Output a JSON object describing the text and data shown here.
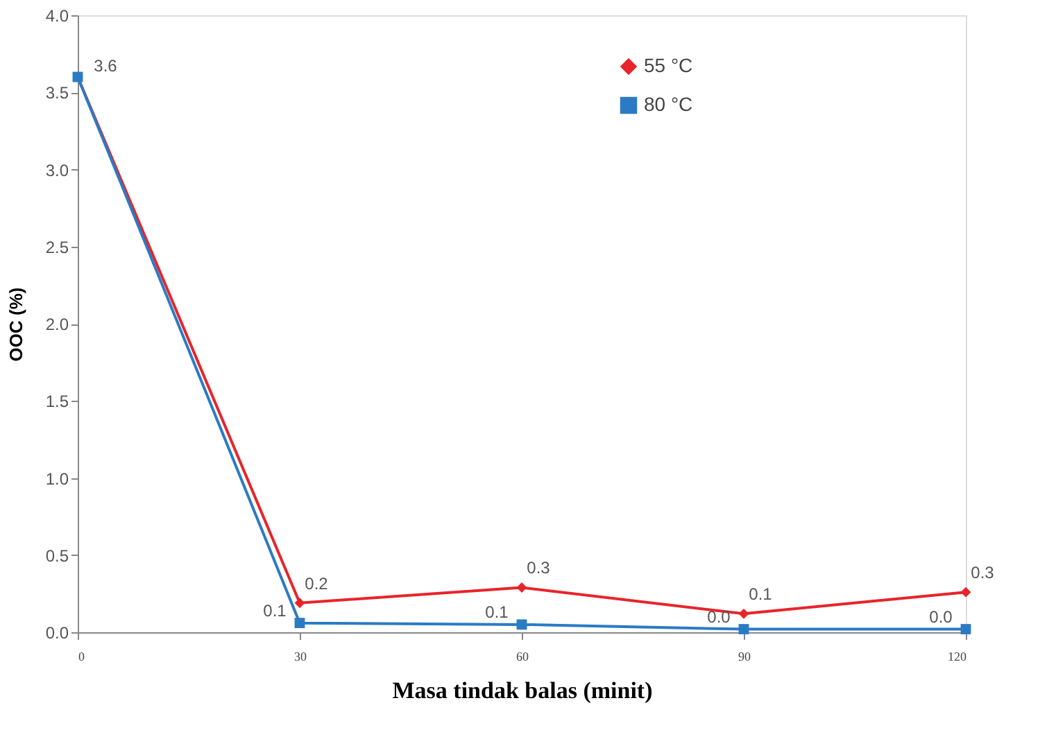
{
  "chart_data": {
    "type": "line",
    "xlabel": "Masa tindak balas (minit)",
    "ylabel": "OOC (%)",
    "x": [
      0,
      30,
      60,
      90,
      120
    ],
    "xlim": [
      0,
      120
    ],
    "xticks": [
      0,
      30,
      60,
      90,
      120
    ],
    "ylim": [
      0,
      4
    ],
    "yticks": [
      {
        "value": 0,
        "label": "0.0"
      },
      {
        "value": 0.5,
        "label": "0.5"
      },
      {
        "value": 1,
        "label": "1.0"
      },
      {
        "value": 1.5,
        "label": "1.5"
      },
      {
        "value": 2,
        "label": "2.0"
      },
      {
        "value": 2.5,
        "label": "2.5"
      },
      {
        "value": 3,
        "label": "3.0"
      },
      {
        "value": 3.5,
        "label": "3.5"
      },
      {
        "value": 4,
        "label": "4.0"
      }
    ],
    "series": [
      {
        "name": "55 °C",
        "color": "#e8242a",
        "marker": "diamond",
        "values": [
          3.6,
          0.19,
          0.29,
          0.12,
          0.26
        ],
        "value_labels": [
          null,
          "0.2",
          "0.3",
          "0.1",
          "0.3"
        ]
      },
      {
        "name": "80 °C",
        "color": "#2a7bc4",
        "marker": "square",
        "values": [
          3.6,
          0.06,
          0.05,
          0.02,
          0.02
        ],
        "value_labels": [
          "3.6",
          "0.1",
          "0.1",
          "0.0",
          "0.0"
        ]
      }
    ],
    "grid": false,
    "legend": "top right",
    "line_style": "solid"
  }
}
